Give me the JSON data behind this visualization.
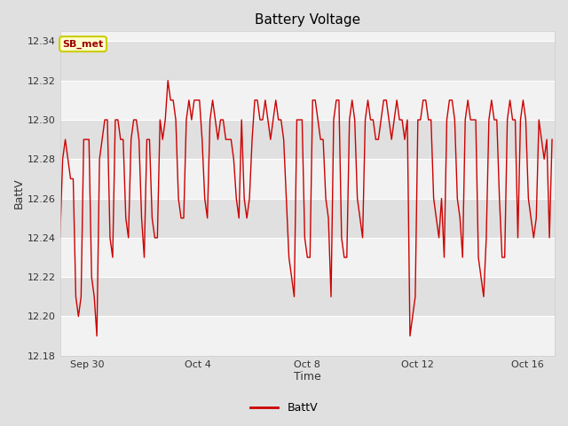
{
  "title": "Battery Voltage",
  "xlabel": "Time",
  "ylabel": "BattV",
  "legend_label": "BattV",
  "annotation_text": "SB_met",
  "ylim": [
    12.18,
    12.345
  ],
  "yticks": [
    12.18,
    12.2,
    12.22,
    12.24,
    12.26,
    12.28,
    12.3,
    12.32,
    12.34
  ],
  "bg_color": "#e0e0e0",
  "plot_bg_light": "#f2f2f2",
  "plot_bg_dark": "#e0e0e0",
  "line_color": "#cc0000",
  "annotation_bg": "#ffffcc",
  "annotation_border": "#cccc00",
  "annotation_text_color": "#990000",
  "grid_color": "#ffffff",
  "x_tick_labels": [
    "Sep 30",
    "Oct 4",
    "Oct 8",
    "Oct 12",
    "Oct 16"
  ],
  "time_series": [
    12.24,
    12.28,
    12.29,
    12.28,
    12.27,
    12.27,
    12.21,
    12.2,
    12.21,
    12.29,
    12.29,
    12.29,
    12.22,
    12.21,
    12.19,
    12.28,
    12.29,
    12.3,
    12.3,
    12.24,
    12.23,
    12.3,
    12.3,
    12.29,
    12.29,
    12.25,
    12.24,
    12.29,
    12.3,
    12.3,
    12.29,
    12.25,
    12.23,
    12.29,
    12.29,
    12.25,
    12.24,
    12.24,
    12.3,
    12.29,
    12.3,
    12.32,
    12.31,
    12.31,
    12.3,
    12.26,
    12.25,
    12.25,
    12.3,
    12.31,
    12.3,
    12.31,
    12.31,
    12.31,
    12.29,
    12.26,
    12.25,
    12.3,
    12.31,
    12.3,
    12.29,
    12.3,
    12.3,
    12.29,
    12.29,
    12.29,
    12.28,
    12.26,
    12.25,
    12.3,
    12.26,
    12.25,
    12.26,
    12.29,
    12.31,
    12.31,
    12.3,
    12.3,
    12.31,
    12.3,
    12.29,
    12.3,
    12.31,
    12.3,
    12.3,
    12.29,
    12.26,
    12.23,
    12.22,
    12.21,
    12.3,
    12.3,
    12.3,
    12.24,
    12.23,
    12.23,
    12.31,
    12.31,
    12.3,
    12.29,
    12.29,
    12.26,
    12.25,
    12.21,
    12.3,
    12.31,
    12.31,
    12.24,
    12.23,
    12.23,
    12.3,
    12.31,
    12.3,
    12.26,
    12.25,
    12.24,
    12.3,
    12.31,
    12.3,
    12.3,
    12.29,
    12.29,
    12.3,
    12.31,
    12.31,
    12.3,
    12.29,
    12.3,
    12.31,
    12.3,
    12.3,
    12.29,
    12.3,
    12.19,
    12.2,
    12.21,
    12.3,
    12.3,
    12.31,
    12.31,
    12.3,
    12.3,
    12.26,
    12.25,
    12.24,
    12.26,
    12.23,
    12.3,
    12.31,
    12.31,
    12.3,
    12.26,
    12.25,
    12.23,
    12.3,
    12.31,
    12.3,
    12.3,
    12.3,
    12.23,
    12.22,
    12.21,
    12.24,
    12.3,
    12.31,
    12.3,
    12.3,
    12.26,
    12.23,
    12.23,
    12.3,
    12.31,
    12.3,
    12.3,
    12.24,
    12.3,
    12.31,
    12.3,
    12.26,
    12.25,
    12.24,
    12.25,
    12.3,
    12.29,
    12.28,
    12.29,
    12.24,
    12.29
  ]
}
